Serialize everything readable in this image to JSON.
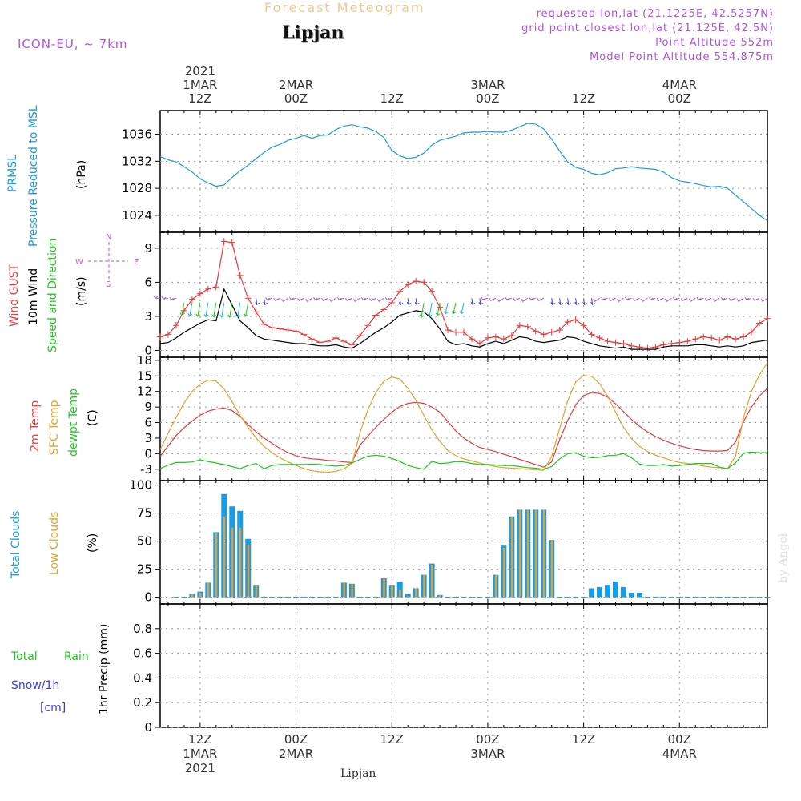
{
  "header": {
    "title": "Forecast Meteogram",
    "place": "Lipjan",
    "model": "ICON-EU, ~ 7km",
    "requested": "requested lon,lat (21.1225E, 42.5257N)",
    "gridpoint": "grid point closest lon,lat (21.125E, 42.5N)",
    "altitude": "Point Altitude 552m",
    "model_altitude": "Model Point Altitude 554.875m"
  },
  "footer": {
    "place": "Lipjan",
    "watermark": "by Angel"
  },
  "colors": {
    "pressure": "#1a9be6",
    "gust": "#e63c3c",
    "wind10m": "#000000",
    "temp": "#e63c3c",
    "sfc": "#e6a030",
    "dewpt": "#1ec81e",
    "total_cloud": "#1a9be6",
    "low_cloud": "#e6a030",
    "rain": "#1ec81e",
    "snow": "#3c3ce6",
    "purple": "#b450e6"
  },
  "time_axis": {
    "top_labels": [
      {
        "t": 0,
        "lines": [
          "2021",
          "1MAR",
          "12Z"
        ]
      },
      {
        "t": 12,
        "lines": [
          "2MAR",
          "00Z"
        ]
      },
      {
        "t": 24,
        "lines": [
          "12Z"
        ]
      },
      {
        "t": 36,
        "lines": [
          "3MAR",
          "00Z"
        ]
      },
      {
        "t": 48,
        "lines": [
          "12Z"
        ]
      },
      {
        "t": 60,
        "lines": [
          "4MAR",
          "00Z"
        ]
      }
    ],
    "bottom_labels": [
      {
        "t": 0,
        "lines": [
          "12Z",
          "1MAR",
          "2021"
        ]
      },
      {
        "t": 12,
        "lines": [
          "00Z",
          "2MAR"
        ]
      },
      {
        "t": 24,
        "lines": [
          "12Z"
        ]
      },
      {
        "t": 36,
        "lines": [
          "00Z",
          "3MAR"
        ]
      },
      {
        "t": 48,
        "lines": [
          "12Z"
        ]
      },
      {
        "t": 60,
        "lines": [
          "00Z",
          "4MAR"
        ]
      }
    ],
    "t_range": [
      -5,
      71
    ]
  },
  "chart_data": [
    {
      "type": "line",
      "title": "Pressure Reduced to MSL",
      "legend": [
        "PRMSL",
        "Pressure Reduced to MSL"
      ],
      "ylabel": "(hPa)",
      "ylim": [
        1021.5,
        1039.5
      ],
      "yticks": [
        1024,
        1028,
        1032,
        1036
      ],
      "x": [
        -5,
        -4,
        -3,
        -2,
        -1,
        0,
        1,
        2,
        3,
        4,
        5,
        6,
        7,
        8,
        9,
        10,
        11,
        12,
        13,
        14,
        15,
        16,
        17,
        18,
        19,
        20,
        21,
        22,
        23,
        24,
        25,
        26,
        27,
        28,
        29,
        30,
        31,
        32,
        33,
        34,
        35,
        36,
        37,
        38,
        39,
        40,
        41,
        42,
        43,
        44,
        45,
        46,
        47,
        48,
        49,
        50,
        51,
        52,
        53,
        54,
        55,
        56,
        57,
        58,
        59,
        60,
        61,
        62,
        63,
        64,
        65,
        66,
        67,
        68,
        69,
        70,
        71
      ],
      "series": [
        {
          "name": "PRMSL",
          "values": [
            1032.7,
            1032.2,
            1031.9,
            1031.2,
            1030.4,
            1029.4,
            1028.8,
            1028.3,
            1028.5,
            1029.6,
            1030.6,
            1031.4,
            1032.4,
            1033.3,
            1034.1,
            1034.5,
            1035.1,
            1035.4,
            1035.8,
            1035.4,
            1035.8,
            1035.9,
            1036.7,
            1037.2,
            1037.4,
            1037.1,
            1036.9,
            1036.4,
            1035.5,
            1033.6,
            1032.8,
            1032.4,
            1032.6,
            1033.2,
            1034.4,
            1035.1,
            1035.4,
            1035.7,
            1036.2,
            1036.3,
            1036.3,
            1036.4,
            1036.3,
            1036.3,
            1036.6,
            1037.1,
            1037.6,
            1037.5,
            1036.8,
            1035.3,
            1033.5,
            1031.9,
            1031.1,
            1030.8,
            1030.2,
            1030.0,
            1030.3,
            1030.9,
            1031.0,
            1031.2,
            1031.0,
            1030.9,
            1030.8,
            1030.4,
            1029.6,
            1029.1,
            1028.9,
            1028.7,
            1028.4,
            1028.2,
            1028.3,
            1028.0,
            1027.0,
            1026.0,
            1025.0,
            1024.0,
            1023.2
          ]
        }
      ]
    },
    {
      "type": "line",
      "title": "Wind GUST / 10m Wind Speed and Direction",
      "legend": [
        "Wind GUST",
        "10m Wind",
        "Speed and Direction"
      ],
      "ylabel": "(m/s)",
      "ylim": [
        -0.6,
        10.4
      ],
      "yticks": [
        0,
        3,
        6,
        9
      ],
      "compass": {
        "n": "N",
        "w": "W",
        "e": "E",
        "s": "S"
      },
      "x": [
        -5,
        -4,
        -3,
        -2,
        -1,
        0,
        1,
        2,
        3,
        4,
        5,
        6,
        7,
        8,
        9,
        10,
        11,
        12,
        13,
        14,
        15,
        16,
        17,
        18,
        19,
        20,
        21,
        22,
        23,
        24,
        25,
        26,
        27,
        28,
        29,
        30,
        31,
        32,
        33,
        34,
        35,
        36,
        37,
        38,
        39,
        40,
        41,
        42,
        43,
        44,
        45,
        46,
        47,
        48,
        49,
        50,
        51,
        52,
        53,
        54,
        55,
        56,
        57,
        58,
        59,
        60,
        61,
        62,
        63,
        64,
        65,
        66,
        67,
        68,
        69,
        70,
        71
      ],
      "series": [
        {
          "name": "Wind GUST",
          "values": [
            1.2,
            1.4,
            2.2,
            3.5,
            4.5,
            5.0,
            5.4,
            5.6,
            9.6,
            9.5,
            6.6,
            4.6,
            3.4,
            2.3,
            2.0,
            1.9,
            1.8,
            1.7,
            1.4,
            1.0,
            0.7,
            0.8,
            1.1,
            0.8,
            0.5,
            1.3,
            2.2,
            3.1,
            3.6,
            4.2,
            5.2,
            5.8,
            6.1,
            6.0,
            5.2,
            3.8,
            1.8,
            1.6,
            1.6,
            1.0,
            0.6,
            1.1,
            1.2,
            1.0,
            1.3,
            2.2,
            2.1,
            1.7,
            1.4,
            1.6,
            1.8,
            2.5,
            2.7,
            2.2,
            1.4,
            1.1,
            0.8,
            0.7,
            0.6,
            0.4,
            0.3,
            0.2,
            0.3,
            0.5,
            0.6,
            0.7,
            0.8,
            1.0,
            1.2,
            1.1,
            0.9,
            1.2,
            1.0,
            1.2,
            1.6,
            2.4,
            2.8
          ]
        },
        {
          "name": "10m Wind",
          "values": [
            0.6,
            0.7,
            1.1,
            1.6,
            2.0,
            2.4,
            2.7,
            2.6,
            5.4,
            4.0,
            2.6,
            2.0,
            1.3,
            1.0,
            0.9,
            0.8,
            0.7,
            0.6,
            0.6,
            0.5,
            0.4,
            0.4,
            0.5,
            0.3,
            0.2,
            0.6,
            1.1,
            1.6,
            2.0,
            2.5,
            3.1,
            3.3,
            3.5,
            3.4,
            2.8,
            1.9,
            0.8,
            0.5,
            0.6,
            0.4,
            0.3,
            0.6,
            0.8,
            0.6,
            0.9,
            1.2,
            1.1,
            0.8,
            0.7,
            0.8,
            0.9,
            1.2,
            1.1,
            0.8,
            0.6,
            0.4,
            0.3,
            0.2,
            0.3,
            0.1,
            0.1,
            0.1,
            0.1,
            0.3,
            0.4,
            0.4,
            0.4,
            0.5,
            0.5,
            0.4,
            0.3,
            0.4,
            0.3,
            0.4,
            0.7,
            0.8,
            0.9
          ]
        }
      ]
    },
    {
      "type": "line",
      "title": "2m Temp / SFC Temp / dewpt Temp",
      "legend": [
        "2m Temp",
        "SFC Temp",
        "dewpt Temp"
      ],
      "ylabel": "(C)",
      "ylim": [
        -5.2,
        18.6
      ],
      "yticks": [
        -3,
        0,
        3,
        6,
        9,
        12,
        15,
        18
      ],
      "x": [
        -5,
        -4,
        -3,
        -2,
        -1,
        0,
        1,
        2,
        3,
        4,
        5,
        6,
        7,
        8,
        9,
        10,
        11,
        12,
        13,
        14,
        15,
        16,
        17,
        18,
        19,
        20,
        21,
        22,
        23,
        24,
        25,
        26,
        27,
        28,
        29,
        30,
        31,
        32,
        33,
        34,
        35,
        36,
        37,
        38,
        39,
        40,
        41,
        42,
        43,
        44,
        45,
        46,
        47,
        48,
        49,
        50,
        51,
        52,
        53,
        54,
        55,
        56,
        57,
        58,
        59,
        60,
        61,
        62,
        63,
        64,
        65,
        66,
        67,
        68,
        69,
        70,
        71
      ],
      "series": [
        {
          "name": "2m Temp",
          "values": [
            -0.5,
            1.5,
            3.5,
            5.0,
            6.3,
            7.4,
            8.2,
            8.6,
            8.8,
            8.3,
            7.2,
            5.6,
            4.2,
            3.0,
            2.0,
            1.0,
            0.2,
            -0.4,
            -0.8,
            -1.0,
            -1.1,
            -1.3,
            -1.4,
            -1.6,
            -1.7,
            1.6,
            3.4,
            5.1,
            6.6,
            8.0,
            9.1,
            9.7,
            9.9,
            9.7,
            9.0,
            8.0,
            6.2,
            4.4,
            3.0,
            2.0,
            1.2,
            0.8,
            0.4,
            -0.1,
            -0.6,
            -1.1,
            -1.6,
            -2.1,
            -2.6,
            -1.6,
            2.7,
            6.4,
            9.4,
            11.2,
            11.8,
            11.6,
            10.9,
            9.6,
            8.1,
            6.6,
            5.3,
            4.2,
            3.3,
            2.6,
            2.0,
            1.5,
            1.1,
            0.8,
            0.6,
            0.5,
            0.5,
            0.6,
            2.2,
            6.2,
            9.0,
            11.1,
            12.6
          ]
        },
        {
          "name": "SFC Temp",
          "values": [
            0.8,
            4.0,
            7.0,
            9.8,
            12.0,
            13.4,
            14.2,
            14.0,
            12.5,
            10.0,
            7.4,
            5.1,
            3.0,
            1.4,
            0.2,
            -0.8,
            -1.6,
            -2.3,
            -2.9,
            -3.3,
            -3.5,
            -3.6,
            -3.4,
            -2.9,
            -2.0,
            4.0,
            8.5,
            11.8,
            14.0,
            14.8,
            14.4,
            12.6,
            10.3,
            7.4,
            4.6,
            2.4,
            0.6,
            -0.4,
            -1.0,
            -1.4,
            -1.8,
            -2.2,
            -2.5,
            -2.7,
            -2.8,
            -2.9,
            -3.0,
            -3.1,
            -3.2,
            -0.6,
            4.9,
            10.2,
            13.8,
            15.1,
            14.9,
            13.5,
            11.1,
            8.0,
            5.1,
            2.9,
            1.4,
            0.4,
            -0.3,
            -0.8,
            -1.3,
            -1.7,
            -1.9,
            -2.1,
            -2.4,
            -2.6,
            -2.7,
            -2.9,
            -0.5,
            6.9,
            12.0,
            15.2,
            17.5
          ]
        },
        {
          "name": "dewpt Temp",
          "values": [
            -2.9,
            -2.2,
            -1.7,
            -1.7,
            -1.6,
            -1.2,
            -1.5,
            -1.8,
            -2.1,
            -2.5,
            -2.9,
            -2.3,
            -1.9,
            -2.9,
            -2.3,
            -2.1,
            -2.1,
            -2.1,
            -2.1,
            -2.0,
            -2.1,
            -2.3,
            -2.4,
            -2.3,
            -1.8,
            -1.1,
            -0.5,
            -0.3,
            -0.5,
            -0.9,
            -1.5,
            -2.3,
            -2.7,
            -3.0,
            -1.5,
            -1.9,
            -1.8,
            -1.5,
            -1.6,
            -1.9,
            -2.1,
            -2.1,
            -2.2,
            -2.3,
            -2.3,
            -2.5,
            -2.7,
            -2.8,
            -3.0,
            -2.5,
            -1.0,
            0.0,
            0.2,
            -0.5,
            -0.8,
            -0.7,
            -0.4,
            -0.3,
            0.0,
            -0.8,
            -2.0,
            -2.3,
            -2.3,
            -2.1,
            -2.4,
            -2.3,
            -2.1,
            -1.9,
            -1.9,
            -1.9,
            -2.6,
            -2.9,
            -1.8,
            0.1,
            0.3,
            0.2,
            0.2
          ]
        }
      ]
    },
    {
      "type": "bar",
      "title": "Total Clouds / Low Clouds",
      "legend": [
        "Total Clouds",
        "Low Clouds"
      ],
      "ylabel": "(%)",
      "ylim": [
        -6,
        104
      ],
      "yticks": [
        0,
        25,
        50,
        75,
        100
      ],
      "x": [
        -3,
        -2,
        -1,
        0,
        1,
        2,
        3,
        4,
        5,
        6,
        7,
        8,
        9,
        10,
        11,
        12,
        13,
        14,
        15,
        16,
        17,
        18,
        19,
        20,
        21,
        22,
        23,
        24,
        25,
        26,
        27,
        28,
        29,
        30,
        31,
        32,
        33,
        34,
        35,
        36,
        37,
        38,
        39,
        40,
        41,
        42,
        43,
        44,
        45,
        46,
        47,
        48,
        49,
        50,
        51,
        52,
        53,
        54,
        55,
        56,
        57,
        58,
        59,
        60,
        61,
        62,
        63,
        64,
        65,
        66,
        67,
        68,
        69,
        70,
        71
      ],
      "series": [
        {
          "name": "Total Clouds",
          "values": [
            0,
            0,
            3,
            5,
            13,
            58,
            92,
            81,
            77,
            52,
            11,
            0,
            0,
            0,
            0,
            0,
            0,
            0,
            0,
            0,
            0,
            13,
            12,
            0,
            0,
            0,
            17,
            11,
            14,
            3,
            8,
            20,
            30,
            2,
            0,
            0,
            0,
            0,
            0,
            0,
            20,
            46,
            72,
            78,
            78,
            78,
            78,
            51,
            0,
            0,
            0,
            0,
            8,
            9,
            11,
            14,
            9,
            4,
            4,
            0,
            0,
            0,
            0,
            0,
            0,
            0,
            0,
            0,
            0,
            0,
            0,
            0,
            0,
            0,
            0
          ]
        },
        {
          "name": "Low Clouds",
          "values": [
            0,
            0,
            3,
            4,
            13,
            57,
            72,
            62,
            62,
            47,
            11,
            0,
            0,
            0,
            0,
            0,
            0,
            0,
            0,
            0,
            0,
            13,
            12,
            0,
            0,
            0,
            17,
            11,
            7,
            1,
            8,
            20,
            29,
            2,
            0,
            0,
            0,
            0,
            0,
            0,
            20,
            44,
            72,
            78,
            78,
            78,
            78,
            51,
            0,
            0,
            0,
            0,
            0,
            0,
            0,
            0,
            0,
            0,
            0,
            0,
            0,
            0,
            0,
            0,
            0,
            0,
            0,
            0,
            0,
            0,
            0,
            0,
            0,
            0,
            0
          ]
        }
      ]
    },
    {
      "type": "bar",
      "title": "1hr Precip",
      "legend": [
        "Total",
        "Rain",
        "Snow/1h",
        "[cm]"
      ],
      "ylabel": "1hr Precip (mm)",
      "ylim": [
        0,
        1.0
      ],
      "yticks": [
        0,
        0.2,
        0.4,
        0.6,
        0.8
      ],
      "x": [],
      "series": [
        {
          "name": "Total Rain",
          "values": []
        }
      ]
    }
  ]
}
